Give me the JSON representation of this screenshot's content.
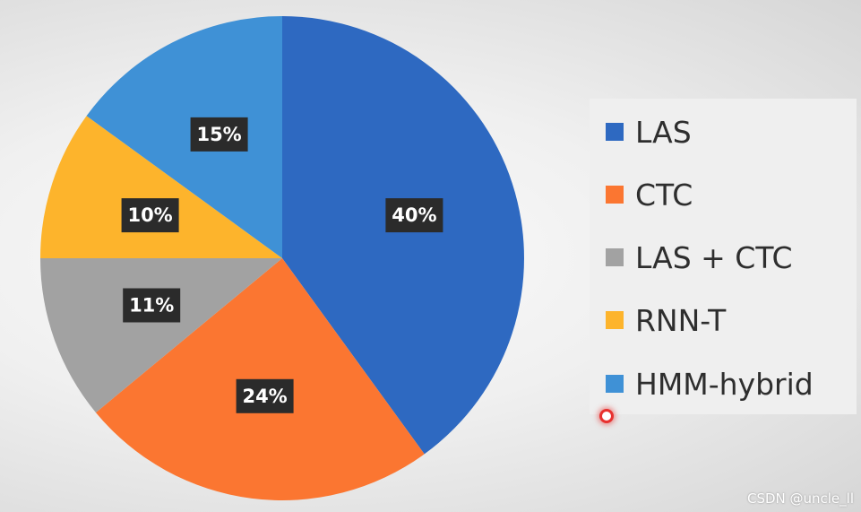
{
  "chart_data": {
    "type": "pie",
    "categories": [
      "LAS",
      "CTC",
      "LAS + CTC",
      "RNN-T",
      "HMM-hybrid"
    ],
    "values": [
      40,
      24,
      11,
      10,
      15
    ],
    "data_labels": [
      "40%",
      "24%",
      "11%",
      "10%",
      "15%"
    ],
    "colors": [
      "#2e69c1",
      "#fb7631",
      "#a2a2a2",
      "#fdb42c",
      "#3f91d6"
    ],
    "legend": {
      "placement": "right",
      "entries": [
        "LAS",
        "CTC",
        "LAS + CTC",
        "RNN-T",
        "HMM-hybrid"
      ]
    },
    "start_angle_deg": 0,
    "direction": "clockwise"
  },
  "watermark": "CSDN @uncle_ll"
}
